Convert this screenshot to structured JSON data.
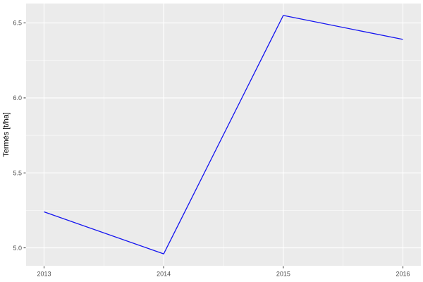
{
  "chart_data": {
    "type": "line",
    "x": [
      2013,
      2014,
      2015,
      2016
    ],
    "values": [
      5.24,
      4.96,
      6.55,
      6.39
    ],
    "ylabel": "Termés [t/ha]",
    "x_ticks": [
      2013,
      2014,
      2015,
      2016
    ],
    "x_tick_labels": [
      "2013",
      "2014",
      "2015",
      "2016"
    ],
    "y_ticks": [
      5.0,
      5.5,
      6.0,
      6.5
    ],
    "y_tick_labels": [
      "5.0",
      "5.5",
      "6.0",
      "6.5"
    ],
    "x_minor_ticks": [
      2013.5,
      2014.5,
      2015.5
    ],
    "y_minor_ticks": [
      5.25,
      5.75,
      6.25
    ],
    "xlim": [
      2012.85,
      2016.15
    ],
    "ylim": [
      4.8805,
      6.6295
    ],
    "grid": "major+minor",
    "legend": "none",
    "style": "ggplot2-grey-theme",
    "colors": {
      "figure_bg": "#FFFFFF",
      "panel_bg": "#EBEBEB",
      "grid": "#FFFFFF",
      "line": "#1414F0",
      "tick_mark": "#333333",
      "tick_label": "#4D4D4D",
      "axis_title": "#000000"
    }
  }
}
